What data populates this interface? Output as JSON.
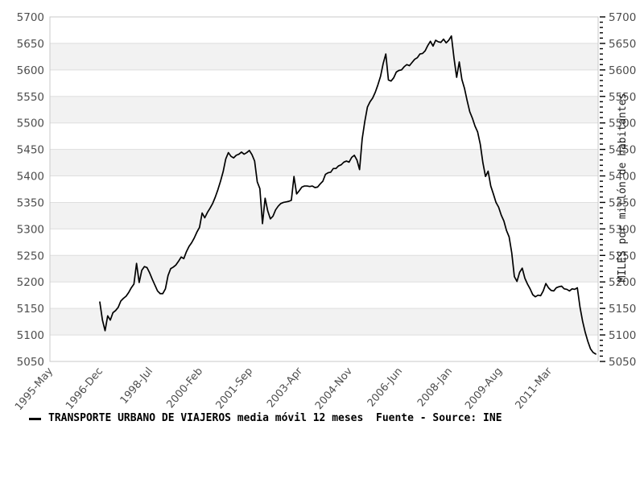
{
  "legend": {
    "series_label": "TRANSPORTE URBANO DE VIAJEROS media móvil 12 meses  Fuente - Source: INE"
  },
  "colors": {
    "line": "#000000",
    "band": "#f2f2f2",
    "grid": "#dedede",
    "frame": "#c9c9c9",
    "tick_label": "#4d4d4d",
    "right_title": "#1a1a1a",
    "background": "#ffffff"
  },
  "chart_data": {
    "type": "line",
    "title": "",
    "xlabel": "",
    "ylabel_right": "MILES por millón de habitantes",
    "ylim": [
      5050,
      5700
    ],
    "y_step": 50,
    "y_minor_step": 10,
    "grid": "horizontal gridlines with alternating shaded bands",
    "legend_position": "bottom-left",
    "x_tick_labels": [
      "1995-May",
      "1996-Dec",
      "1998-Jul",
      "2000-Feb",
      "2001-Sep",
      "2003-Apr",
      "2004-Nov",
      "2006-Jun",
      "2008-Jan",
      "2009-Aug",
      "2011-Mar"
    ],
    "x_tick_interval_months": 19,
    "series": [
      {
        "name": "TRANSPORTE URBANO DE VIAJEROS media móvil 12 meses",
        "start": "1996-12",
        "frequency": "monthly",
        "end": "2012-09",
        "values": [
          5162,
          5128,
          5108,
          5136,
          5128,
          5142,
          5146,
          5152,
          5164,
          5169,
          5173,
          5180,
          5189,
          5196,
          5235,
          5199,
          5222,
          5229,
          5227,
          5217,
          5205,
          5194,
          5183,
          5178,
          5178,
          5187,
          5212,
          5225,
          5228,
          5232,
          5239,
          5247,
          5244,
          5257,
          5267,
          5274,
          5283,
          5294,
          5303,
          5330,
          5321,
          5331,
          5339,
          5348,
          5360,
          5374,
          5390,
          5408,
          5432,
          5444,
          5437,
          5434,
          5439,
          5441,
          5445,
          5441,
          5444,
          5448,
          5440,
          5428,
          5389,
          5376,
          5310,
          5358,
          5334,
          5319,
          5324,
          5336,
          5343,
          5348,
          5350,
          5351,
          5352,
          5354,
          5399,
          5366,
          5372,
          5379,
          5381,
          5381,
          5380,
          5381,
          5378,
          5379,
          5385,
          5390,
          5403,
          5406,
          5407,
          5414,
          5414,
          5419,
          5421,
          5426,
          5428,
          5426,
          5435,
          5439,
          5430,
          5412,
          5470,
          5503,
          5530,
          5540,
          5547,
          5558,
          5572,
          5588,
          5612,
          5630,
          5581,
          5579,
          5585,
          5596,
          5599,
          5600,
          5606,
          5610,
          5608,
          5614,
          5620,
          5623,
          5630,
          5631,
          5636,
          5646,
          5654,
          5645,
          5656,
          5653,
          5652,
          5658,
          5651,
          5656,
          5664,
          5622,
          5586,
          5615,
          5582,
          5565,
          5542,
          5521,
          5509,
          5494,
          5483,
          5460,
          5425,
          5399,
          5409,
          5381,
          5366,
          5350,
          5341,
          5326,
          5315,
          5297,
          5285,
          5255,
          5210,
          5201,
          5218,
          5226,
          5207,
          5196,
          5187,
          5176,
          5172,
          5175,
          5174,
          5183,
          5197,
          5189,
          5184,
          5183,
          5189,
          5191,
          5192,
          5187,
          5186,
          5183,
          5187,
          5186,
          5189,
          5153,
          5126,
          5105,
          5088,
          5074,
          5067,
          5064
        ]
      }
    ]
  }
}
